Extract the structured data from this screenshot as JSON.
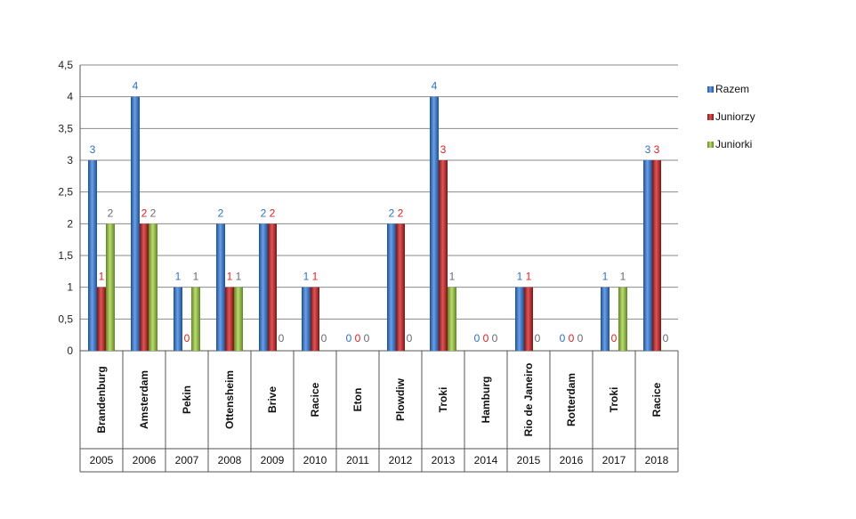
{
  "chart_data": {
    "type": "bar",
    "categories": [
      "Brandenburg",
      "Amsterdam",
      "Pekin",
      "Ottensheim",
      "Brive",
      "Racice",
      "Eton",
      "Plowdiw",
      "Troki",
      "Hamburg",
      "Rio de Janeiro",
      "Rotterdam",
      "Troki",
      "Racice"
    ],
    "years": [
      "2005",
      "2006",
      "2007",
      "2008",
      "2009",
      "2010",
      "2011",
      "2012",
      "2013",
      "2014",
      "2015",
      "2016",
      "2017",
      "2018"
    ],
    "series": [
      {
        "name": "Razem",
        "color": "#2e6fc4",
        "label_color": "#2e6fc4",
        "values": [
          3,
          4,
          1,
          2,
          2,
          1,
          0,
          2,
          4,
          0,
          1,
          0,
          1,
          3
        ]
      },
      {
        "name": "Juniorzy",
        "color": "#b82525",
        "label_color": "#e02020",
        "values": [
          1,
          2,
          0,
          1,
          2,
          1,
          0,
          2,
          3,
          0,
          1,
          0,
          0,
          3
        ]
      },
      {
        "name": "Juniorki",
        "color": "#8cb83a",
        "label_color": "#6a6a6a",
        "values": [
          2,
          2,
          1,
          1,
          0,
          0,
          0,
          0,
          1,
          0,
          0,
          0,
          1,
          0
        ]
      }
    ],
    "ylim": [
      0,
      4.5
    ],
    "yticks": [
      "0",
      "0,5",
      "1",
      "1,5",
      "2",
      "2,5",
      "3",
      "3,5",
      "4",
      "4,5"
    ],
    "grid": true,
    "legend_position": "right"
  }
}
